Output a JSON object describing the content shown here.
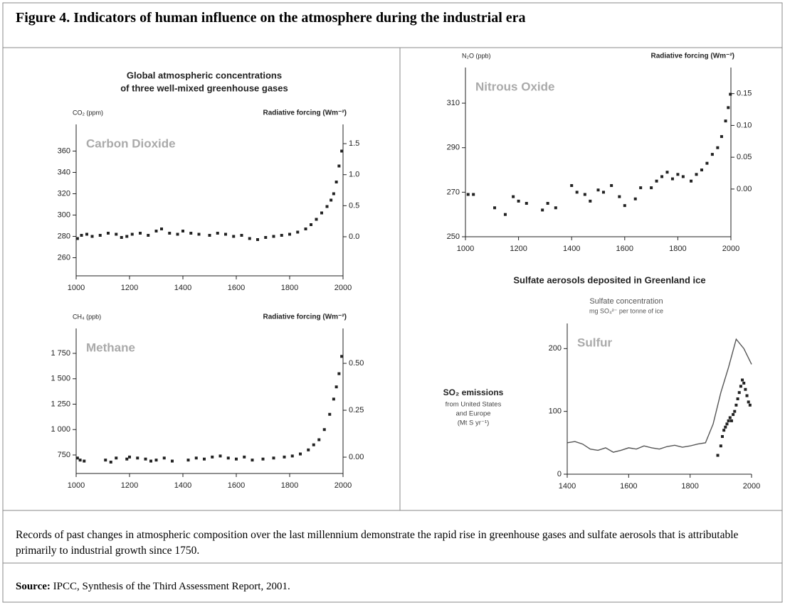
{
  "figure_title": "Figure 4. Indicators of human influence on the atmosphere during the industrial era",
  "left_panel_title": [
    "Global atmospheric concentrations",
    "of three well-mixed greenhouse gases"
  ],
  "caption": "Records of past changes in atmospheric composition over the last millennium demonstrate the rapid rise in greenhouse gases and sulfate aerosols that is attributable primarily to industrial growth since 1750.",
  "source": {
    "label": "Source:",
    "text": "IPCC, Synthesis of the Third Assessment Report, 2001."
  },
  "chart_data": [
    {
      "type": "scatter",
      "annotation": "Carbon Dioxide",
      "ylabel": "CO₂ (ppm)",
      "y2label": "Radiative forcing (Wm⁻²)",
      "xlim": [
        1000,
        2000
      ],
      "xticks": [
        1000,
        1200,
        1400,
        1600,
        1800,
        2000
      ],
      "ylim": [
        243,
        385
      ],
      "yticks": [
        260,
        280,
        300,
        320,
        340,
        360
      ],
      "y2lim": [
        -0.63,
        1.81
      ],
      "y2ticks": [
        {
          "value": 0,
          "label": "0.0"
        },
        0.5,
        {
          "value": 1,
          "label": "1.0"
        },
        1.5
      ],
      "series": [
        {
          "color": "#222222",
          "x": [
            1005,
            1020,
            1040,
            1060,
            1090,
            1120,
            1150,
            1170,
            1190,
            1210,
            1240,
            1270,
            1300,
            1320,
            1350,
            1380,
            1400,
            1430,
            1460,
            1500,
            1530,
            1560,
            1590,
            1620,
            1650,
            1680,
            1710,
            1740,
            1770,
            1800,
            1830,
            1860,
            1880,
            1900,
            1920,
            1940,
            1955,
            1965,
            1975,
            1985,
            1995
          ],
          "values": [
            278,
            281,
            282,
            280,
            281,
            283,
            282,
            279,
            280,
            282,
            283,
            281,
            285,
            287,
            283,
            282,
            285,
            283,
            282,
            281,
            283,
            282,
            280,
            281,
            278,
            277,
            279,
            280,
            281,
            282,
            284,
            287,
            291,
            296,
            302,
            308,
            314,
            320,
            331,
            346,
            360
          ]
        }
      ]
    },
    {
      "type": "scatter",
      "annotation": "Methane",
      "ylabel": "CH₄ (ppb)",
      "y2label": "Radiative forcing (Wm⁻²)",
      "xlim": [
        1000,
        2000
      ],
      "xticks": [
        1000,
        1200,
        1400,
        1600,
        1800,
        2000
      ],
      "ylim": [
        568,
        1995
      ],
      "yticks": [
        750,
        {
          "value": 1000,
          "label": "1 000"
        },
        {
          "value": 1250,
          "label": "1 250"
        },
        {
          "value": 1500,
          "label": "1 500"
        },
        {
          "value": 1750,
          "label": "1 750"
        }
      ],
      "y2lim": [
        -0.087,
        0.686
      ],
      "y2ticks": [
        {
          "value": 0,
          "label": "0.00"
        },
        0.25,
        {
          "value": 0.5,
          "label": "0.50"
        }
      ],
      "series": [
        {
          "color": "#222222",
          "x": [
            1005,
            1015,
            1030,
            1110,
            1130,
            1150,
            1190,
            1200,
            1230,
            1260,
            1280,
            1300,
            1330,
            1360,
            1420,
            1450,
            1480,
            1510,
            1540,
            1570,
            1600,
            1630,
            1660,
            1700,
            1740,
            1780,
            1810,
            1840,
            1870,
            1890,
            1910,
            1930,
            1950,
            1965,
            1975,
            1985,
            1995
          ],
          "values": [
            720,
            700,
            690,
            700,
            680,
            720,
            710,
            730,
            720,
            710,
            690,
            700,
            720,
            690,
            700,
            720,
            710,
            730,
            740,
            720,
            710,
            730,
            700,
            710,
            720,
            730,
            740,
            760,
            800,
            850,
            900,
            1000,
            1150,
            1300,
            1420,
            1550,
            1720
          ]
        }
      ]
    },
    {
      "type": "scatter",
      "annotation": "Nitrous Oxide",
      "ylabel": "N₂O (ppb)",
      "y2label": "Radiative forcing (Wm⁻²)",
      "xlim": [
        1000,
        2000
      ],
      "xticks": [
        1000,
        1200,
        1400,
        1600,
        1800,
        2000
      ],
      "ylim": [
        250,
        326
      ],
      "yticks": [
        250,
        270,
        290,
        310
      ],
      "y2lim": [
        -0.075,
        0.191
      ],
      "y2ticks": [
        {
          "value": 0,
          "label": "0.00"
        },
        0.05,
        {
          "value": 0.1,
          "label": "0.10"
        },
        0.15
      ],
      "series": [
        {
          "color": "#222222",
          "x": [
            1010,
            1030,
            1110,
            1150,
            1180,
            1200,
            1230,
            1290,
            1310,
            1340,
            1400,
            1420,
            1450,
            1470,
            1500,
            1520,
            1550,
            1580,
            1600,
            1640,
            1660,
            1700,
            1720,
            1740,
            1760,
            1780,
            1800,
            1820,
            1850,
            1870,
            1890,
            1910,
            1930,
            1950,
            1965,
            1980,
            1990,
            1998
          ],
          "values": [
            269,
            269,
            263,
            260,
            268,
            266,
            265,
            262,
            265,
            263,
            273,
            270,
            269,
            266,
            271,
            270,
            273,
            268,
            264,
            267,
            272,
            272,
            275,
            277,
            279,
            276,
            278,
            277,
            275,
            278,
            280,
            283,
            287,
            290,
            295,
            302,
            308,
            314
          ]
        }
      ]
    },
    {
      "type": "line",
      "title": "Sulfate aerosols deposited in Greenland ice",
      "annotation": "Sulfur",
      "xlim": [
        1400,
        2000
      ],
      "xticks": [
        1400,
        1600,
        1800,
        2000
      ],
      "ylim": [
        0,
        240
      ],
      "yticks": [
        0,
        100,
        200
      ],
      "series": [
        {
          "name": "Sulfate concentration",
          "unit_label": "mg SO₄²⁻ per tonne of ice",
          "color": "#555555",
          "x": [
            1400,
            1425,
            1450,
            1475,
            1500,
            1525,
            1550,
            1575,
            1600,
            1625,
            1650,
            1675,
            1700,
            1725,
            1750,
            1775,
            1800,
            1825,
            1850,
            1875,
            1900,
            1925,
            1950,
            1975,
            2000
          ],
          "values": [
            50,
            52,
            48,
            40,
            38,
            42,
            35,
            38,
            42,
            40,
            45,
            42,
            40,
            44,
            46,
            43,
            45,
            48,
            50,
            80,
            130,
            170,
            215,
            200,
            175
          ]
        },
        {
          "name": "SO₂ emissions",
          "description": [
            "from United States",
            "and Europe",
            "(Mt S yr⁻¹)"
          ],
          "type": "scatter",
          "color": "#222222",
          "x": [
            1890,
            1900,
            1905,
            1910,
            1915,
            1920,
            1925,
            1930,
            1935,
            1940,
            1945,
            1950,
            1955,
            1960,
            1965,
            1970,
            1975,
            1980,
            1985,
            1990,
            1995
          ],
          "values": [
            30,
            45,
            60,
            70,
            75,
            80,
            85,
            90,
            85,
            95,
            100,
            110,
            120,
            130,
            140,
            150,
            145,
            135,
            125,
            115,
            110
          ]
        }
      ]
    }
  ]
}
